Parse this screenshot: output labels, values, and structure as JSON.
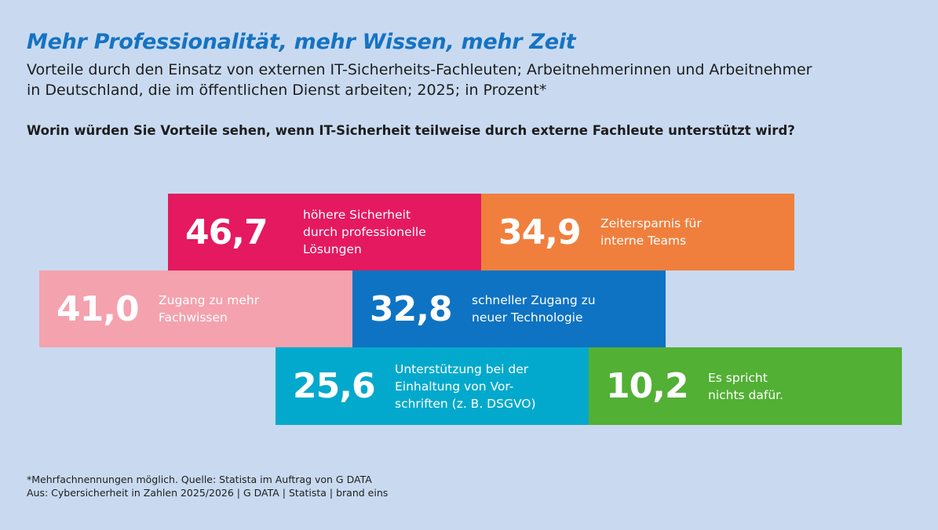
{
  "header": {
    "title": "Mehr Professionalität, mehr Wissen, mehr Zeit",
    "subtitle_line1": "Vorteile durch den Einsatz von externen IT-Sicherheits-Fachleuten; Arbeitnehmerinnen und Arbeitnehmer",
    "subtitle_line2": "in Deutschland, die im öffentlichen Dienst arbeiten; 2025; in Prozent*",
    "question": "Worin würden Sie Vorteile sehen, wenn IT-Sicherheit teilweise durch externe Fachleute unterstützt wird?"
  },
  "chart_data": {
    "type": "table",
    "unit": "Prozent",
    "items": [
      {
        "value": "46,7",
        "label_lines": [
          "höhere Sicherheit",
          "durch professionelle",
          "Lösungen"
        ],
        "color": "#e5195f"
      },
      {
        "value": "34,9",
        "label_lines": [
          "Zeitersparnis für",
          "interne Teams"
        ],
        "color": "#f07f3d"
      },
      {
        "value": "41,0",
        "label_lines": [
          "Zugang zu mehr",
          "Fachwissen"
        ],
        "color": "#f4a2ae"
      },
      {
        "value": "32,8",
        "label_lines": [
          "schneller Zugang zu",
          "neuer Technologie"
        ],
        "color": "#0e73c2"
      },
      {
        "value": "25,6",
        "label_lines": [
          "Unterstützung bei der",
          "Einhaltung von Vor-",
          "schriften (z. B. DSGVO)"
        ],
        "color": "#03a9cc"
      },
      {
        "value": "10,2",
        "label_lines": [
          "Es spricht",
          "nichts dafür."
        ],
        "color": "#52b035"
      }
    ]
  },
  "footer": {
    "line1": "*Mehrfachnennungen möglich. Quelle: Statista im Auftrag von G DATA",
    "line2": "Aus: Cybersicherheit in Zahlen 2025/2026 | G DATA | Statista | brand eins"
  }
}
